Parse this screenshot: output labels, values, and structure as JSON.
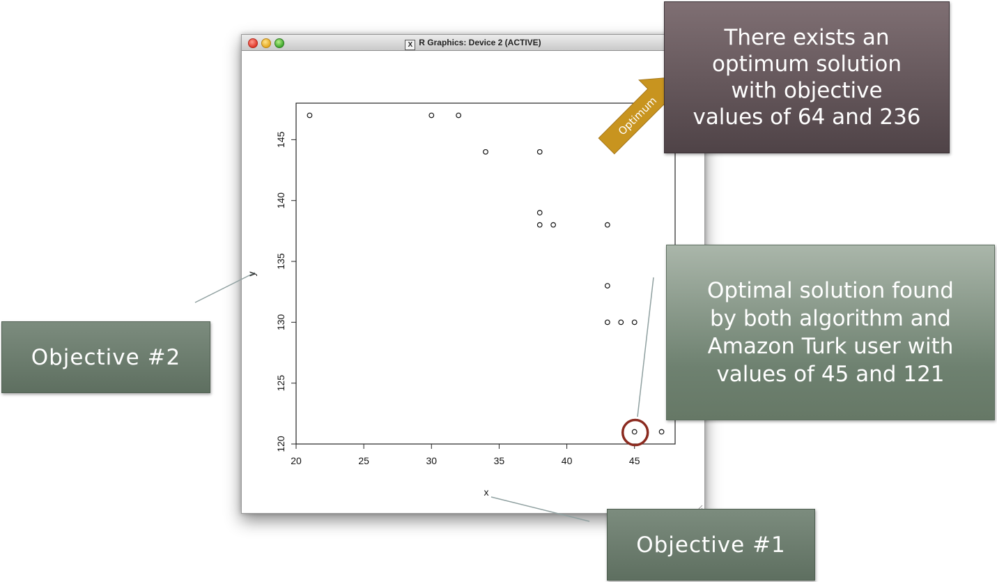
{
  "window": {
    "title": "R Graphics: Device 2 (ACTIVE)",
    "x_logo": "X"
  },
  "chart_data": {
    "type": "scatter",
    "title": "",
    "xlabel": "x",
    "ylabel": "y",
    "xlim": [
      20,
      48
    ],
    "ylim": [
      120,
      148
    ],
    "xticks": [
      20,
      25,
      30,
      35,
      40,
      45
    ],
    "yticks": [
      120,
      125,
      130,
      135,
      140,
      145
    ],
    "grid": false,
    "marker": "open-circle",
    "points": [
      {
        "x": 21,
        "y": 147
      },
      {
        "x": 30,
        "y": 147
      },
      {
        "x": 32,
        "y": 147
      },
      {
        "x": 34,
        "y": 144
      },
      {
        "x": 38,
        "y": 144
      },
      {
        "x": 38,
        "y": 139
      },
      {
        "x": 38,
        "y": 138
      },
      {
        "x": 39,
        "y": 138
      },
      {
        "x": 43,
        "y": 138
      },
      {
        "x": 43,
        "y": 133
      },
      {
        "x": 43,
        "y": 130
      },
      {
        "x": 44,
        "y": 130
      },
      {
        "x": 45,
        "y": 130
      },
      {
        "x": 45,
        "y": 121
      },
      {
        "x": 47,
        "y": 121
      }
    ],
    "highlighted_point": {
      "x": 45,
      "y": 121
    }
  },
  "annotations": {
    "optimum_box": [
      "There exists an",
      "optimum solution",
      "with objective",
      "values of 64 and 236"
    ],
    "optimum_arrow_label": "Optimum",
    "optimal_box": [
      "Optimal solution found",
      "by both algorithm and",
      "Amazon Turk user with",
      "values of 45 and 121"
    ],
    "objective2": "Objective #2",
    "objective1": "Objective #1"
  },
  "colors": {
    "highlight_circle": "#8b2a1f",
    "arrow_fill": "#c8941f",
    "leader_line": "#8fa0a0"
  }
}
